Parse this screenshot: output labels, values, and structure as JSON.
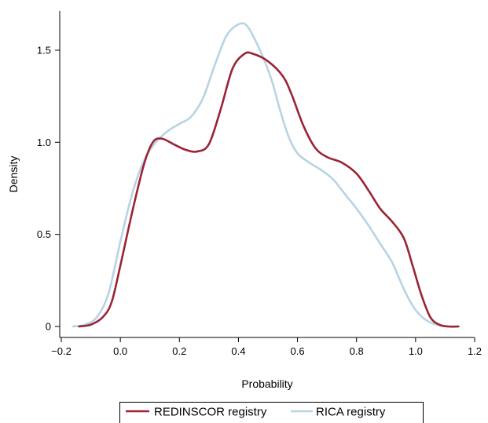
{
  "chart_data": {
    "type": "line",
    "xlabel": "Probability",
    "ylabel": "Density",
    "xlim": [
      -0.2,
      1.2
    ],
    "ylim": [
      0,
      1.6
    ],
    "x_ticks": [
      -0.2,
      0.0,
      0.2,
      0.4,
      0.6,
      0.8,
      1.0,
      1.2
    ],
    "x_tick_labels": [
      "−0.2",
      "0.0",
      "0.2",
      "0.4",
      "0.6",
      "0.8",
      "1.0",
      "1.2"
    ],
    "y_ticks": [
      0,
      0.5,
      1.0,
      1.5
    ],
    "y_tick_labels": [
      "0",
      "0.5",
      "1.0",
      "1.5"
    ],
    "grid": false,
    "legend": {
      "placement": "bottom",
      "boxed": true
    },
    "series": [
      {
        "name": "REDINSCOR registry",
        "color": "#9b2335",
        "points": [
          [
            -0.14,
            0
          ],
          [
            -0.1,
            0.01
          ],
          [
            -0.06,
            0.05
          ],
          [
            -0.03,
            0.13
          ],
          [
            0.0,
            0.33
          ],
          [
            0.04,
            0.62
          ],
          [
            0.08,
            0.88
          ],
          [
            0.11,
            1.0
          ],
          [
            0.14,
            1.02
          ],
          [
            0.18,
            0.99
          ],
          [
            0.22,
            0.96
          ],
          [
            0.26,
            0.95
          ],
          [
            0.3,
            0.99
          ],
          [
            0.34,
            1.18
          ],
          [
            0.38,
            1.4
          ],
          [
            0.42,
            1.48
          ],
          [
            0.45,
            1.48
          ],
          [
            0.5,
            1.44
          ],
          [
            0.55,
            1.36
          ],
          [
            0.58,
            1.26
          ],
          [
            0.62,
            1.09
          ],
          [
            0.66,
            0.97
          ],
          [
            0.7,
            0.92
          ],
          [
            0.75,
            0.89
          ],
          [
            0.8,
            0.83
          ],
          [
            0.84,
            0.74
          ],
          [
            0.88,
            0.64
          ],
          [
            0.92,
            0.57
          ],
          [
            0.96,
            0.48
          ],
          [
            0.99,
            0.33
          ],
          [
            1.02,
            0.17
          ],
          [
            1.05,
            0.05
          ],
          [
            1.08,
            0.01
          ],
          [
            1.11,
            0.0
          ],
          [
            1.145,
            0
          ]
        ]
      },
      {
        "name": "RICA registry",
        "color": "#b8d3e3",
        "points": [
          [
            -0.16,
            0
          ],
          [
            -0.12,
            0.01
          ],
          [
            -0.08,
            0.05
          ],
          [
            -0.04,
            0.18
          ],
          [
            0.0,
            0.46
          ],
          [
            0.04,
            0.72
          ],
          [
            0.08,
            0.9
          ],
          [
            0.12,
            1.0
          ],
          [
            0.16,
            1.06
          ],
          [
            0.2,
            1.1
          ],
          [
            0.24,
            1.14
          ],
          [
            0.28,
            1.24
          ],
          [
            0.32,
            1.42
          ],
          [
            0.36,
            1.58
          ],
          [
            0.4,
            1.64
          ],
          [
            0.43,
            1.63
          ],
          [
            0.47,
            1.51
          ],
          [
            0.51,
            1.35
          ],
          [
            0.54,
            1.18
          ],
          [
            0.57,
            1.03
          ],
          [
            0.6,
            0.94
          ],
          [
            0.64,
            0.89
          ],
          [
            0.68,
            0.85
          ],
          [
            0.72,
            0.8
          ],
          [
            0.76,
            0.72
          ],
          [
            0.8,
            0.64
          ],
          [
            0.84,
            0.55
          ],
          [
            0.88,
            0.45
          ],
          [
            0.92,
            0.35
          ],
          [
            0.95,
            0.24
          ],
          [
            0.98,
            0.14
          ],
          [
            1.01,
            0.07
          ],
          [
            1.04,
            0.03
          ],
          [
            1.07,
            0.01
          ],
          [
            1.1,
            0
          ]
        ]
      }
    ]
  }
}
